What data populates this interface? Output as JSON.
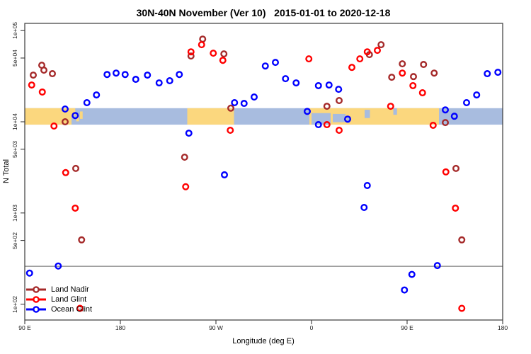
{
  "chart_data": {
    "type": "scatter",
    "title": "30N-40N November (Ver 10)   2015-01-01 to 2020-12-18",
    "xlabel": "Longitude (deg E)",
    "ylabel": "N Total",
    "x_axis": {
      "note": "degrees eastward from 90E, wrapping 90E-180-90W-0-90E-180",
      "range": [
        0,
        450
      ],
      "ticks": [
        {
          "pos": 0,
          "label": "90 E"
        },
        {
          "pos": 90,
          "label": "180"
        },
        {
          "pos": 180,
          "label": "90 W"
        },
        {
          "pos": 270,
          "label": "0"
        },
        {
          "pos": 360,
          "label": "90 E"
        },
        {
          "pos": 450,
          "label": "180"
        }
      ]
    },
    "y_axis": {
      "scale": "log",
      "range": [
        67,
        120000
      ],
      "ticks": [
        {
          "value": 100000,
          "label": "1e+05"
        },
        {
          "value": 50000,
          "label": "5e+04"
        },
        {
          "value": 10000,
          "label": "1e+04"
        },
        {
          "value": 5000,
          "label": "5e+03"
        },
        {
          "value": 1000,
          "label": "1e+03"
        },
        {
          "value": 500,
          "label": "5e+02"
        },
        {
          "value": 100,
          "label": "1e+02"
        }
      ]
    },
    "threshold_line": {
      "value": 260,
      "color": "#7f7f7f"
    },
    "band": {
      "top_value": 14100,
      "bottom_value": 9300,
      "ocean_color": "#a8bcdf",
      "land_color": "#fbd77e",
      "land_segments": [
        {
          "d0": 0,
          "d1": 44,
          "f0": 0,
          "f1": 1
        },
        {
          "d0": 44,
          "d1": 47.5,
          "f0": 0,
          "f1": 0.45
        },
        {
          "d0": 48.5,
          "d1": 51,
          "f0": 0.35,
          "f1": 0.8
        },
        {
          "d0": 52,
          "d1": 54.5,
          "f0": 0.2,
          "f1": 0.65
        },
        {
          "d0": 153,
          "d1": 197,
          "f0": 0,
          "f1": 1
        },
        {
          "d0": 268,
          "d1": 390,
          "f0": 0,
          "f1": 1
        }
      ],
      "water_patches": [
        {
          "d0": 270,
          "d1": 288,
          "f0": 0.3,
          "f1": 1
        },
        {
          "d0": 290,
          "d1": 302,
          "f0": 0.35,
          "f1": 0.85
        },
        {
          "d0": 303,
          "d1": 306,
          "f0": 0.55,
          "f1": 0.9
        },
        {
          "d0": 320,
          "d1": 325,
          "f0": 0.1,
          "f1": 0.6
        },
        {
          "d0": 347,
          "d1": 350.5,
          "f0": 0,
          "f1": 0.4
        }
      ]
    },
    "series": [
      {
        "id": "land-nadir",
        "name": "Land Nadir",
        "color": "#a52a2a",
        "points": [
          [
            16,
            41700
          ],
          [
            18,
            36800
          ],
          [
            8,
            32500
          ],
          [
            26,
            33700
          ],
          [
            167.5,
            80700
          ],
          [
            156.5,
            52600
          ],
          [
            187.5,
            55500
          ],
          [
            194,
            14100
          ],
          [
            38,
            10000
          ],
          [
            335.5,
            70000
          ],
          [
            324.5,
            54500
          ],
          [
            345.5,
            30800
          ],
          [
            355.5,
            43200
          ],
          [
            366,
            31300
          ],
          [
            375.5,
            42500
          ],
          [
            385.5,
            34200
          ],
          [
            396,
            9800
          ],
          [
            296,
            17100
          ],
          [
            284.5,
            14800
          ],
          [
            48,
            3080
          ],
          [
            53.5,
            507
          ],
          [
            150.5,
            4090
          ],
          [
            406,
            3080
          ],
          [
            411.5,
            507
          ]
        ]
      },
      {
        "id": "land-glint",
        "name": "Land Glint",
        "color": "#ff0000",
        "points": [
          [
            6.5,
            25300
          ],
          [
            16.5,
            21200
          ],
          [
            27.5,
            8980
          ],
          [
            166.5,
            70000
          ],
          [
            156.5,
            58500
          ],
          [
            177.5,
            56500
          ],
          [
            186.5,
            47200
          ],
          [
            193.5,
            8070
          ],
          [
            267.5,
            49000
          ],
          [
            315.5,
            49000
          ],
          [
            308,
            39500
          ],
          [
            332,
            60700
          ],
          [
            322.5,
            58500
          ],
          [
            355.5,
            34200
          ],
          [
            365.5,
            24900
          ],
          [
            374.5,
            20800
          ],
          [
            344.5,
            14800
          ],
          [
            284.5,
            9300
          ],
          [
            296,
            8070
          ],
          [
            384.5,
            9150
          ],
          [
            38.5,
            2770
          ],
          [
            47.5,
            1130
          ],
          [
            151.5,
            1940
          ],
          [
            396.5,
            2820
          ],
          [
            405.5,
            1130
          ],
          [
            411.5,
            90
          ],
          [
            52,
            90
          ]
        ]
      },
      {
        "id": "ocean-glint",
        "name": "Ocean Glint",
        "color": "#0000ff",
        "points": [
          [
            77.5,
            33000
          ],
          [
            86,
            34200
          ],
          [
            94.5,
            33000
          ],
          [
            104.5,
            29200
          ],
          [
            115.5,
            32500
          ],
          [
            126.5,
            26700
          ],
          [
            136.5,
            28200
          ],
          [
            145.5,
            33000
          ],
          [
            67.5,
            19700
          ],
          [
            58.5,
            16200
          ],
          [
            38,
            13800
          ],
          [
            47.5,
            11700
          ],
          [
            226.5,
            40900
          ],
          [
            236,
            44800
          ],
          [
            216,
            18700
          ],
          [
            206.5,
            15900
          ],
          [
            197.5,
            16200
          ],
          [
            245.5,
            29700
          ],
          [
            255.5,
            26700
          ],
          [
            276.5,
            24900
          ],
          [
            286.5,
            25300
          ],
          [
            295.5,
            22700
          ],
          [
            266,
            13000
          ],
          [
            304,
            10700
          ],
          [
            276.5,
            9300
          ],
          [
            435.5,
            33700
          ],
          [
            445.5,
            34900
          ],
          [
            425.5,
            19700
          ],
          [
            416,
            16200
          ],
          [
            396,
            13500
          ],
          [
            404.5,
            11500
          ],
          [
            154.5,
            7500
          ],
          [
            188,
            2620
          ],
          [
            322.5,
            2000
          ],
          [
            319.5,
            1150
          ],
          [
            31.5,
            262
          ],
          [
            4.5,
            219
          ],
          [
            388.5,
            265
          ],
          [
            364.5,
            212
          ],
          [
            357.5,
            143
          ]
        ]
      }
    ],
    "legend_position": "bottom-left"
  }
}
